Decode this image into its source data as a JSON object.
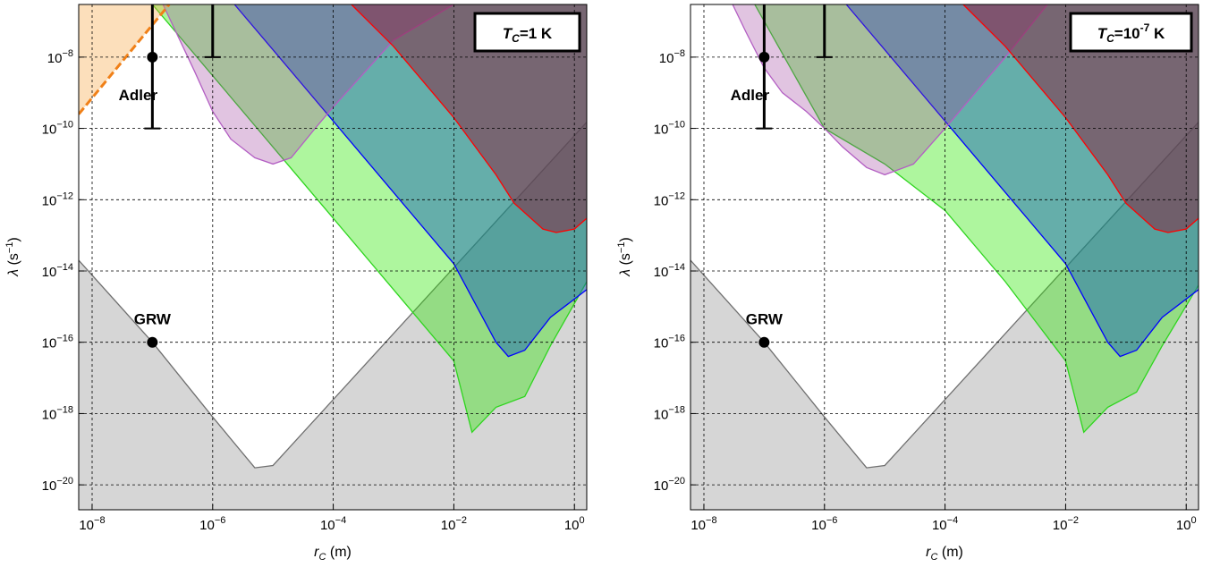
{
  "chart_data": [
    {
      "type": "area",
      "panel_label": {
        "var": "T",
        "sub": "C",
        "eq": "=1 K",
        "exp": ""
      },
      "xlabel": {
        "var": "r",
        "sub": "C",
        "rest": " (m)"
      },
      "ylabel": {
        "var": "λ",
        "rest": " (s",
        "exp": "−1",
        "close": ")"
      },
      "x_log": true,
      "y_log": true,
      "xlim": [
        6e-09,
        1.6
      ],
      "ylim": [
        2e-21,
        3e-07
      ],
      "grid": true,
      "x_ticks": [
        {
          "base": "10",
          "exp": "−8",
          "v": 1e-08
        },
        {
          "base": "10",
          "exp": "−6",
          "v": 1e-06
        },
        {
          "base": "10",
          "exp": "−4",
          "v": 0.0001
        },
        {
          "base": "10",
          "exp": "−2",
          "v": 0.01
        },
        {
          "base": "10",
          "exp": "0",
          "v": 1
        }
      ],
      "y_ticks": [
        {
          "base": "10",
          "exp": "−8",
          "v": 1e-08
        },
        {
          "base": "10",
          "exp": "−10",
          "v": 1e-10
        },
        {
          "base": "10",
          "exp": "−12",
          "v": 1e-12
        },
        {
          "base": "10",
          "exp": "−14",
          "v": 1e-14
        },
        {
          "base": "10",
          "exp": "−16",
          "v": 1e-16
        },
        {
          "base": "10",
          "exp": "−18",
          "v": 1e-18
        },
        {
          "base": "10",
          "exp": "−20",
          "v": 1e-20
        }
      ],
      "regions": [
        {
          "id": "gray",
          "fill": "#9e9e9e",
          "opacity": 0.42,
          "stroke": "#6f6f6f",
          "closure": "bottom",
          "x": [
            6e-09,
            1e-07,
            1e-06,
            5e-06,
            1e-05,
            1.6
          ],
          "y": [
            2e-14,
            1e-16,
            8e-19,
            3e-20,
            3.5e-20,
            1.5e-10
          ]
        },
        {
          "id": "green",
          "fill": "#2be800",
          "opacity": 0.38,
          "stroke": "#2fd51f",
          "closure": "top",
          "x": [
            1e-07,
            1e-06,
            1e-05,
            0.0001,
            0.001,
            0.01,
            0.02,
            0.05,
            0.15,
            0.4,
            1.6
          ],
          "y": [
            3e-07,
            3e-09,
            3e-11,
            3e-13,
            3e-15,
            3e-17,
            3e-19,
            1.5e-18,
            3e-18,
            8e-17,
            5e-15
          ]
        },
        {
          "id": "blue",
          "fill": "#1560b8",
          "opacity": 0.48,
          "stroke": "#0000ff",
          "closure": "top",
          "x": [
            2.3e-06,
            1e-05,
            0.0001,
            0.001,
            0.01,
            0.05,
            0.08,
            0.15,
            0.4,
            1.6
          ],
          "y": [
            3e-07,
            1.6e-08,
            1.6e-10,
            1.6e-12,
            1.6e-14,
            1e-16,
            4e-17,
            6e-17,
            5e-16,
            3e-15
          ]
        },
        {
          "id": "magenta",
          "fill": "#9b3a9b",
          "opacity": 0.3,
          "stroke": "#b35ec3",
          "closure": "top",
          "x": [
            1.5e-07,
            5e-07,
            1e-06,
            2e-06,
            5e-06,
            1e-05,
            2e-05,
            5e-05,
            0.0001,
            0.001,
            0.01
          ],
          "y": [
            3e-07,
            4e-09,
            3e-10,
            5e-11,
            1.5e-11,
            1e-11,
            1.5e-11,
            1e-10,
            4e-10,
            3e-08,
            3e-07
          ]
        },
        {
          "id": "red",
          "fill": "#8a1e3a",
          "opacity": 0.5,
          "stroke": "#ff0000",
          "closure": "top",
          "x": [
            0.0002,
            0.001,
            0.01,
            0.05,
            0.1,
            0.3,
            0.5,
            1,
            1.6
          ],
          "y": [
            3e-07,
            2e-08,
            2e-10,
            5e-12,
            8e-13,
            1.5e-13,
            1.2e-13,
            1.5e-13,
            3e-13
          ]
        },
        {
          "id": "orange",
          "fill": "#f7a23d",
          "opacity": 0.35,
          "stroke": "#f08018",
          "closure": "orange-wedge",
          "x": [
            6e-09,
            1.9e-07
          ],
          "y": [
            2.5e-10,
            3e-07
          ]
        }
      ],
      "points": [
        {
          "label": "GRW",
          "x": 1e-07,
          "y": 1e-16
        },
        {
          "label": "Adler",
          "x": 1e-07,
          "y": 1e-08
        }
      ],
      "error_bars": [
        {
          "x": 1e-07,
          "y_low": 1e-10,
          "y_high": 3e-07,
          "cap_low": true,
          "cap_high": false
        },
        {
          "x": 1e-06,
          "y_low": 1e-08,
          "y_high": 3e-07,
          "cap_low": true,
          "cap_high": false
        }
      ]
    },
    {
      "type": "area",
      "panel_label": {
        "var": "T",
        "sub": "C",
        "eq": "=10",
        "exp": "-7",
        "tail": " K"
      },
      "xlabel": {
        "var": "r",
        "sub": "C",
        "rest": " (m)"
      },
      "ylabel": {
        "var": "λ",
        "rest": " (s",
        "exp": "−1",
        "close": ")"
      },
      "x_log": true,
      "y_log": true,
      "xlim": [
        6e-09,
        1.6
      ],
      "ylim": [
        2e-21,
        3e-07
      ],
      "grid": true,
      "x_ticks": [
        {
          "base": "10",
          "exp": "−8",
          "v": 1e-08
        },
        {
          "base": "10",
          "exp": "−6",
          "v": 1e-06
        },
        {
          "base": "10",
          "exp": "−4",
          "v": 0.0001
        },
        {
          "base": "10",
          "exp": "−2",
          "v": 0.01
        },
        {
          "base": "10",
          "exp": "0",
          "v": 1
        }
      ],
      "y_ticks": [
        {
          "base": "10",
          "exp": "−8",
          "v": 1e-08
        },
        {
          "base": "10",
          "exp": "−10",
          "v": 1e-10
        },
        {
          "base": "10",
          "exp": "−12",
          "v": 1e-12
        },
        {
          "base": "10",
          "exp": "−14",
          "v": 1e-14
        },
        {
          "base": "10",
          "exp": "−16",
          "v": 1e-16
        },
        {
          "base": "10",
          "exp": "−18",
          "v": 1e-18
        },
        {
          "base": "10",
          "exp": "−20",
          "v": 1e-20
        }
      ],
      "regions": [
        {
          "id": "gray",
          "fill": "#9e9e9e",
          "opacity": 0.42,
          "stroke": "#6f6f6f",
          "closure": "bottom",
          "x": [
            6e-09,
            1e-07,
            1e-06,
            5e-06,
            1e-05,
            1.6
          ],
          "y": [
            2e-14,
            1e-16,
            8e-19,
            3e-20,
            3.5e-20,
            1.5e-10
          ]
        },
        {
          "id": "green",
          "fill": "#2be800",
          "opacity": 0.38,
          "stroke": "#2fd51f",
          "closure": "top",
          "x": [
            7e-08,
            1e-06,
            1e-05,
            0.0001,
            0.001,
            0.01,
            0.02,
            0.05,
            0.15,
            0.4,
            1.6
          ],
          "y": [
            3e-07,
            1e-10,
            1e-11,
            5e-13,
            5e-15,
            3e-17,
            3e-19,
            1.5e-18,
            4e-18,
            8e-17,
            4e-15
          ]
        },
        {
          "id": "blue",
          "fill": "#1560b8",
          "opacity": 0.48,
          "stroke": "#0000ff",
          "closure": "top",
          "x": [
            2.3e-06,
            1e-05,
            0.0001,
            0.001,
            0.01,
            0.05,
            0.08,
            0.15,
            0.4,
            1.6
          ],
          "y": [
            3e-07,
            1.6e-08,
            1.6e-10,
            1.6e-12,
            1.6e-14,
            1e-16,
            4e-17,
            6e-17,
            5e-16,
            3e-15
          ]
        },
        {
          "id": "magenta",
          "fill": "#9b3a9b",
          "opacity": 0.3,
          "stroke": "#b35ec3",
          "closure": "top",
          "x": [
            3e-08,
            5e-08,
            1e-07,
            2e-07,
            5e-07,
            1e-06,
            2e-06,
            5e-06,
            1e-05,
            3e-05,
            0.0001,
            0.001,
            0.005
          ],
          "y": [
            3e-07,
            5e-08,
            5e-09,
            1e-09,
            3e-10,
            1e-10,
            3e-11,
            8e-12,
            5e-12,
            1e-11,
            1e-10,
            1e-08,
            3e-07
          ]
        },
        {
          "id": "red",
          "fill": "#8a1e3a",
          "opacity": 0.5,
          "stroke": "#ff0000",
          "closure": "top",
          "x": [
            0.0002,
            0.001,
            0.01,
            0.05,
            0.1,
            0.3,
            0.5,
            1,
            1.6
          ],
          "y": [
            3e-07,
            2e-08,
            2e-10,
            5e-12,
            8e-13,
            1.5e-13,
            1.2e-13,
            1.5e-13,
            3e-13
          ]
        }
      ],
      "points": [
        {
          "label": "GRW",
          "x": 1e-07,
          "y": 1e-16
        },
        {
          "label": "Adler",
          "x": 1e-07,
          "y": 1e-08
        }
      ],
      "error_bars": [
        {
          "x": 1e-07,
          "y_low": 1e-10,
          "y_high": 3e-07,
          "cap_low": true,
          "cap_high": false
        },
        {
          "x": 1e-06,
          "y_low": 1e-08,
          "y_high": 3e-07,
          "cap_low": true,
          "cap_high": false
        }
      ]
    }
  ]
}
